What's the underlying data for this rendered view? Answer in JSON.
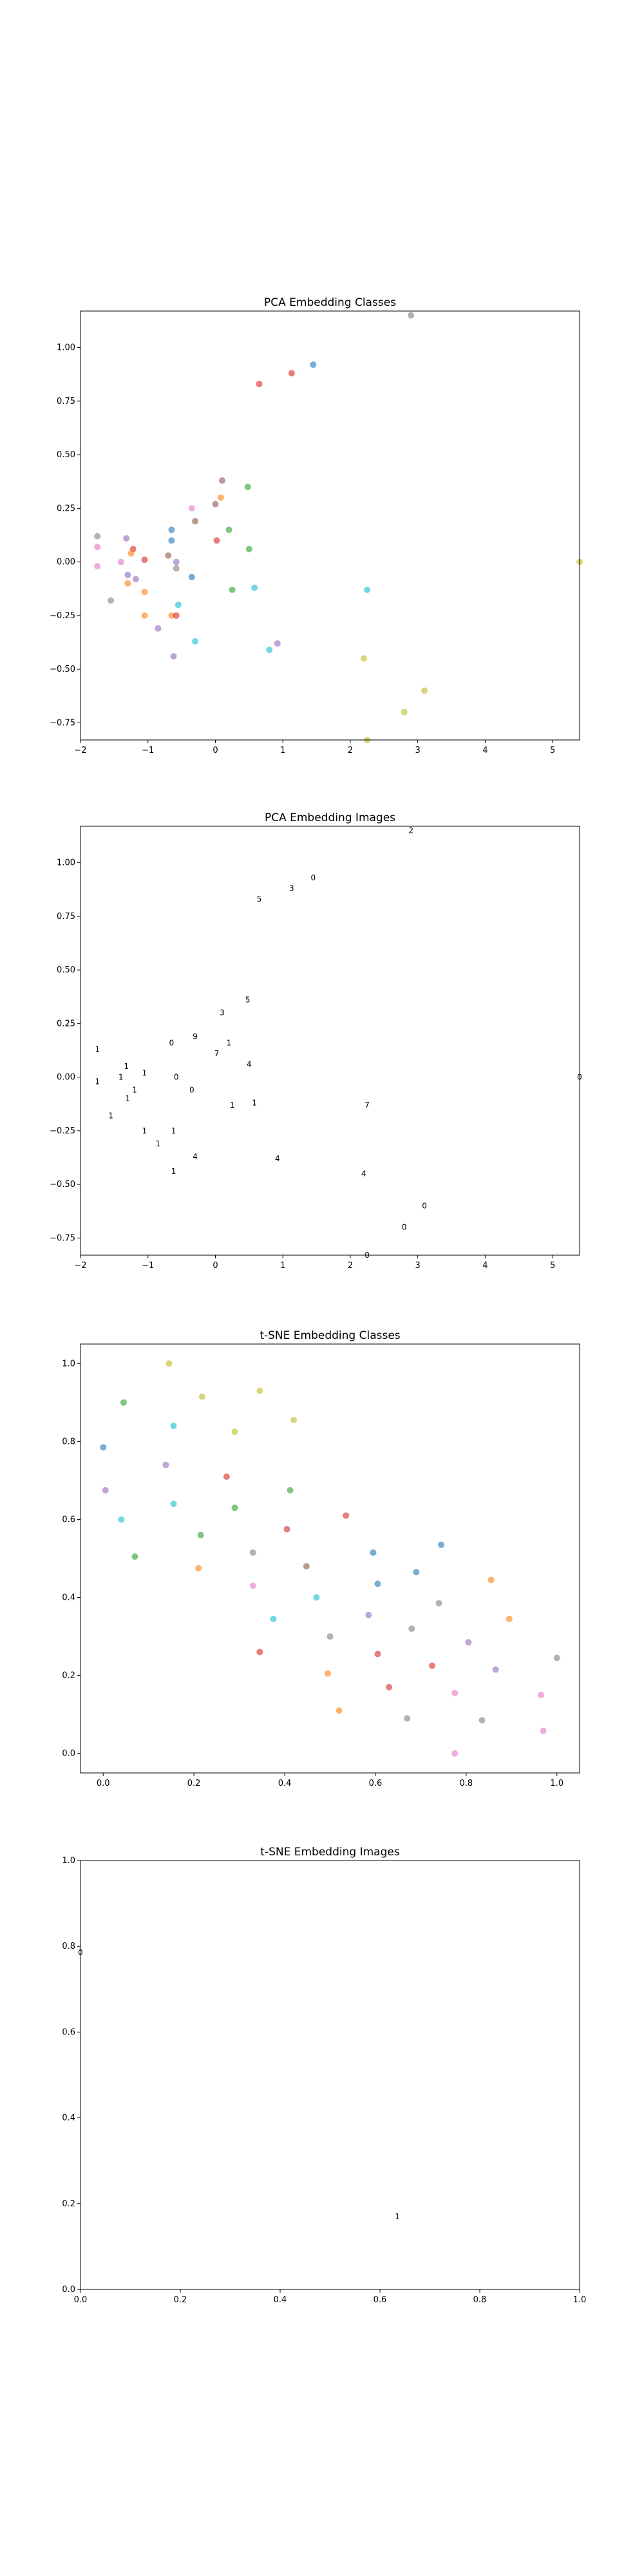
{
  "palette": {
    "0": "#1f77b4",
    "1": "#ff7f0e",
    "2": "#2ca02c",
    "3": "#d62728",
    "4": "#9467bd",
    "5": "#8c564b",
    "6": "#e377c2",
    "7": "#7f7f7f",
    "8": "#bcbd22",
    "9": "#17becf"
  },
  "chart_data": [
    {
      "type": "scatter",
      "title": "PCA Embedding Classes",
      "xlim": [
        -2,
        5.4
      ],
      "ylim": [
        -0.83,
        1.17
      ],
      "xticks": [
        -2,
        -1,
        0,
        1,
        2,
        3,
        4,
        5
      ],
      "yticks": [
        -0.75,
        -0.5,
        -0.25,
        0.0,
        0.25,
        0.5,
        0.75,
        1.0
      ],
      "xtick_labels": [
        "−2",
        "−1",
        "0",
        "1",
        "2",
        "3",
        "4",
        "5"
      ],
      "ytick_labels": [
        "−0.75",
        "−0.50",
        "−0.25",
        "0.00",
        "0.25",
        "0.50",
        "0.75",
        "1.00"
      ],
      "grid": false,
      "points": [
        {
          "x": 0.65,
          "y": 0.83,
          "c": 3
        },
        {
          "x": 1.13,
          "y": 0.88,
          "c": 3
        },
        {
          "x": 1.45,
          "y": 0.92,
          "c": 0
        },
        {
          "x": 0.1,
          "y": 0.38,
          "c": 5
        },
        {
          "x": 0.48,
          "y": 0.35,
          "c": 2
        },
        {
          "x": 0.08,
          "y": 0.3,
          "c": 1
        },
        {
          "x": 0.0,
          "y": 0.27,
          "c": 5
        },
        {
          "x": -0.35,
          "y": 0.25,
          "c": 6
        },
        {
          "x": -0.3,
          "y": 0.19,
          "c": 5
        },
        {
          "x": -0.65,
          "y": 0.15,
          "c": 0
        },
        {
          "x": -0.65,
          "y": 0.1,
          "c": 0
        },
        {
          "x": 0.2,
          "y": 0.15,
          "c": 2
        },
        {
          "x": 0.5,
          "y": 0.06,
          "c": 2
        },
        {
          "x": 0.02,
          "y": 0.1,
          "c": 3
        },
        {
          "x": -1.75,
          "y": 0.12,
          "c": 7
        },
        {
          "x": -1.32,
          "y": 0.11,
          "c": 4
        },
        {
          "x": -1.75,
          "y": 0.07,
          "c": 6
        },
        {
          "x": -1.22,
          "y": 0.06,
          "c": 3
        },
        {
          "x": -1.25,
          "y": 0.04,
          "c": 1
        },
        {
          "x": -1.05,
          "y": 0.01,
          "c": 3
        },
        {
          "x": -1.4,
          "y": 0.0,
          "c": 6
        },
        {
          "x": -1.75,
          "y": -0.02,
          "c": 6
        },
        {
          "x": -0.7,
          "y": 0.03,
          "c": 5
        },
        {
          "x": -0.58,
          "y": 0.0,
          "c": 4
        },
        {
          "x": -0.58,
          "y": -0.03,
          "c": 7
        },
        {
          "x": -1.3,
          "y": -0.06,
          "c": 4
        },
        {
          "x": -1.18,
          "y": -0.08,
          "c": 4
        },
        {
          "x": -1.3,
          "y": -0.1,
          "c": 1
        },
        {
          "x": -0.35,
          "y": -0.07,
          "c": 0
        },
        {
          "x": -1.05,
          "y": -0.14,
          "c": 1
        },
        {
          "x": 0.25,
          "y": -0.13,
          "c": 2
        },
        {
          "x": 0.58,
          "y": -0.12,
          "c": 9
        },
        {
          "x": 2.25,
          "y": -0.13,
          "c": 9
        },
        {
          "x": -1.55,
          "y": -0.18,
          "c": 7
        },
        {
          "x": -0.55,
          "y": -0.2,
          "c": 9
        },
        {
          "x": -1.05,
          "y": -0.25,
          "c": 1
        },
        {
          "x": -0.65,
          "y": -0.25,
          "c": 1
        },
        {
          "x": -0.58,
          "y": -0.25,
          "c": 3
        },
        {
          "x": -0.85,
          "y": -0.31,
          "c": 4
        },
        {
          "x": -0.3,
          "y": -0.37,
          "c": 9
        },
        {
          "x": 0.92,
          "y": -0.38,
          "c": 4
        },
        {
          "x": 0.8,
          "y": -0.41,
          "c": 9
        },
        {
          "x": -0.62,
          "y": -0.44,
          "c": 4
        },
        {
          "x": 2.2,
          "y": -0.45,
          "c": 8
        },
        {
          "x": 3.1,
          "y": -0.6,
          "c": 8
        },
        {
          "x": 2.8,
          "y": -0.7,
          "c": 8
        },
        {
          "x": 2.25,
          "y": -0.83,
          "c": 8
        },
        {
          "x": 5.4,
          "y": 0.0,
          "c": 8
        },
        {
          "x": 2.9,
          "y": 1.15,
          "c": 7
        }
      ]
    },
    {
      "type": "scatter",
      "title": "PCA Embedding Images",
      "xlim": [
        -2,
        5.4
      ],
      "ylim": [
        -0.83,
        1.17
      ],
      "xticks": [
        -2,
        -1,
        0,
        1,
        2,
        3,
        4,
        5
      ],
      "yticks": [
        -0.75,
        -0.5,
        -0.25,
        0.0,
        0.25,
        0.5,
        0.75,
        1.0
      ],
      "xtick_labels": [
        "−2",
        "−1",
        "0",
        "1",
        "2",
        "3",
        "4",
        "5"
      ],
      "ytick_labels": [
        "−0.75",
        "−0.50",
        "−0.25",
        "0.00",
        "0.25",
        "0.50",
        "0.75",
        "1.00"
      ],
      "grid": false,
      "marker": "tiny digit images",
      "points": [
        {
          "x": 2.9,
          "y": 1.15,
          "g": "2"
        },
        {
          "x": 1.45,
          "y": 0.93,
          "g": "0"
        },
        {
          "x": 1.13,
          "y": 0.88,
          "g": "3"
        },
        {
          "x": 0.65,
          "y": 0.83,
          "g": "5"
        },
        {
          "x": 0.48,
          "y": 0.36,
          "g": "5"
        },
        {
          "x": 0.1,
          "y": 0.3,
          "g": "3"
        },
        {
          "x": -0.3,
          "y": 0.19,
          "g": "9"
        },
        {
          "x": -0.65,
          "y": 0.16,
          "g": "0"
        },
        {
          "x": 0.02,
          "y": 0.11,
          "g": "7"
        },
        {
          "x": 0.2,
          "y": 0.16,
          "g": "1"
        },
        {
          "x": 0.5,
          "y": 0.06,
          "g": "4"
        },
        {
          "x": -1.75,
          "y": 0.13,
          "g": "1"
        },
        {
          "x": -1.32,
          "y": 0.05,
          "g": "1"
        },
        {
          "x": -1.05,
          "y": 0.02,
          "g": "1"
        },
        {
          "x": -1.4,
          "y": 0.0,
          "g": "1"
        },
        {
          "x": -0.58,
          "y": 0.0,
          "g": "0"
        },
        {
          "x": -1.75,
          "y": -0.02,
          "g": "1"
        },
        {
          "x": -1.2,
          "y": -0.06,
          "g": "1"
        },
        {
          "x": -0.35,
          "y": -0.06,
          "g": "0"
        },
        {
          "x": -1.3,
          "y": -0.1,
          "g": "1"
        },
        {
          "x": 0.25,
          "y": -0.13,
          "g": "1"
        },
        {
          "x": 0.58,
          "y": -0.12,
          "g": "1"
        },
        {
          "x": 2.25,
          "y": -0.13,
          "g": "7"
        },
        {
          "x": -1.55,
          "y": -0.18,
          "g": "1"
        },
        {
          "x": -1.05,
          "y": -0.25,
          "g": "1"
        },
        {
          "x": -0.62,
          "y": -0.25,
          "g": "1"
        },
        {
          "x": -0.85,
          "y": -0.31,
          "g": "1"
        },
        {
          "x": -0.3,
          "y": -0.37,
          "g": "4"
        },
        {
          "x": 0.92,
          "y": -0.38,
          "g": "4"
        },
        {
          "x": -0.62,
          "y": -0.44,
          "g": "1"
        },
        {
          "x": 2.2,
          "y": -0.45,
          "g": "4"
        },
        {
          "x": 3.1,
          "y": -0.6,
          "g": "0"
        },
        {
          "x": 2.8,
          "y": -0.7,
          "g": "0"
        },
        {
          "x": 2.25,
          "y": -0.83,
          "g": "0"
        },
        {
          "x": 5.4,
          "y": 0.0,
          "g": "0"
        }
      ]
    },
    {
      "type": "scatter",
      "title": "t-SNE Embedding Classes",
      "xlim": [
        -0.05,
        1.05
      ],
      "ylim": [
        -0.05,
        1.05
      ],
      "xticks": [
        0.0,
        0.2,
        0.4,
        0.6,
        0.8,
        1.0
      ],
      "yticks": [
        0.0,
        0.2,
        0.4,
        0.6,
        0.8,
        1.0
      ],
      "xtick_labels": [
        "0.0",
        "0.2",
        "0.4",
        "0.6",
        "0.8",
        "1.0"
      ],
      "ytick_labels": [
        "0.0",
        "0.2",
        "0.4",
        "0.6",
        "0.8",
        "1.0"
      ],
      "grid": false,
      "points": [
        {
          "x": 0.145,
          "y": 1.0,
          "c": 8
        },
        {
          "x": 0.345,
          "y": 0.93,
          "c": 8
        },
        {
          "x": 0.218,
          "y": 0.915,
          "c": 8
        },
        {
          "x": 0.045,
          "y": 0.9,
          "c": 2
        },
        {
          "x": 0.42,
          "y": 0.855,
          "c": 8
        },
        {
          "x": 0.155,
          "y": 0.84,
          "c": 9
        },
        {
          "x": 0.29,
          "y": 0.825,
          "c": 8
        },
        {
          "x": 0.0,
          "y": 0.785,
          "c": 0
        },
        {
          "x": 0.138,
          "y": 0.74,
          "c": 4
        },
        {
          "x": 0.272,
          "y": 0.71,
          "c": 3
        },
        {
          "x": 0.412,
          "y": 0.675,
          "c": 2
        },
        {
          "x": 0.005,
          "y": 0.675,
          "c": 4
        },
        {
          "x": 0.155,
          "y": 0.64,
          "c": 9
        },
        {
          "x": 0.29,
          "y": 0.63,
          "c": 2
        },
        {
          "x": 0.535,
          "y": 0.61,
          "c": 3
        },
        {
          "x": 0.04,
          "y": 0.6,
          "c": 9
        },
        {
          "x": 0.405,
          "y": 0.575,
          "c": 3
        },
        {
          "x": 0.215,
          "y": 0.56,
          "c": 2
        },
        {
          "x": 0.745,
          "y": 0.535,
          "c": 0
        },
        {
          "x": 0.595,
          "y": 0.515,
          "c": 0
        },
        {
          "x": 0.33,
          "y": 0.515,
          "c": 7
        },
        {
          "x": 0.07,
          "y": 0.505,
          "c": 2
        },
        {
          "x": 0.448,
          "y": 0.48,
          "c": 5
        },
        {
          "x": 0.21,
          "y": 0.475,
          "c": 1
        },
        {
          "x": 0.69,
          "y": 0.465,
          "c": 0
        },
        {
          "x": 0.855,
          "y": 0.445,
          "c": 1
        },
        {
          "x": 0.605,
          "y": 0.435,
          "c": 0
        },
        {
          "x": 0.33,
          "y": 0.43,
          "c": 6
        },
        {
          "x": 0.47,
          "y": 0.4,
          "c": 9
        },
        {
          "x": 0.74,
          "y": 0.385,
          "c": 7
        },
        {
          "x": 0.585,
          "y": 0.355,
          "c": 4
        },
        {
          "x": 0.375,
          "y": 0.345,
          "c": 9
        },
        {
          "x": 0.895,
          "y": 0.345,
          "c": 1
        },
        {
          "x": 0.68,
          "y": 0.32,
          "c": 7
        },
        {
          "x": 0.5,
          "y": 0.3,
          "c": 7
        },
        {
          "x": 0.805,
          "y": 0.285,
          "c": 4
        },
        {
          "x": 0.345,
          "y": 0.26,
          "c": 3
        },
        {
          "x": 0.605,
          "y": 0.255,
          "c": 3
        },
        {
          "x": 1.0,
          "y": 0.245,
          "c": 7
        },
        {
          "x": 0.725,
          "y": 0.225,
          "c": 3
        },
        {
          "x": 0.865,
          "y": 0.215,
          "c": 4
        },
        {
          "x": 0.495,
          "y": 0.205,
          "c": 1
        },
        {
          "x": 0.63,
          "y": 0.17,
          "c": 3
        },
        {
          "x": 0.775,
          "y": 0.155,
          "c": 6
        },
        {
          "x": 0.965,
          "y": 0.15,
          "c": 6
        },
        {
          "x": 0.52,
          "y": 0.11,
          "c": 1
        },
        {
          "x": 0.67,
          "y": 0.09,
          "c": 7
        },
        {
          "x": 0.835,
          "y": 0.085,
          "c": 7
        },
        {
          "x": 0.97,
          "y": 0.058,
          "c": 6
        },
        {
          "x": 0.775,
          "y": 0.0,
          "c": 6
        }
      ]
    },
    {
      "type": "scatter",
      "title": "t-SNE Embedding Images",
      "xlim": [
        0.0,
        1.0
      ],
      "ylim": [
        0.0,
        1.0
      ],
      "xticks": [
        0.0,
        0.2,
        0.4,
        0.6,
        0.8,
        1.0
      ],
      "yticks": [
        0.0,
        0.2,
        0.4,
        0.6,
        0.8,
        1.0
      ],
      "xtick_labels": [
        "0.0",
        "0.2",
        "0.4",
        "0.6",
        "0.8",
        "1.0"
      ],
      "ytick_labels": [
        "0.0",
        "0.2",
        "0.4",
        "0.6",
        "0.8",
        "1.0"
      ],
      "grid": false,
      "marker": "tiny digit images",
      "points": [
        {
          "x": 0.0,
          "y": 0.785,
          "g": "0"
        },
        {
          "x": 0.635,
          "y": 0.17,
          "g": "1"
        }
      ]
    }
  ]
}
